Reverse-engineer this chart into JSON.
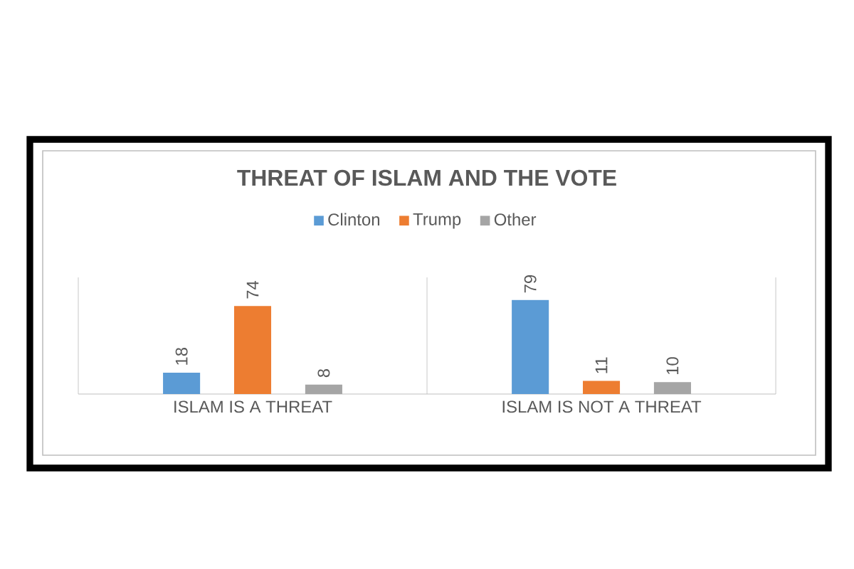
{
  "chart_data": {
    "type": "bar",
    "title": "THREAT OF ISLAM AND THE VOTE",
    "categories": [
      "ISLAM IS A THREAT",
      "ISLAM IS NOT A THREAT"
    ],
    "series": [
      {
        "name": "Clinton",
        "color": "#5b9bd5",
        "values": [
          18,
          79
        ]
      },
      {
        "name": "Trump",
        "color": "#ed7d31",
        "values": [
          74,
          11
        ]
      },
      {
        "name": "Other",
        "color": "#a5a5a5",
        "values": [
          8,
          10
        ]
      }
    ],
    "data_labels": true,
    "legend": "top"
  }
}
